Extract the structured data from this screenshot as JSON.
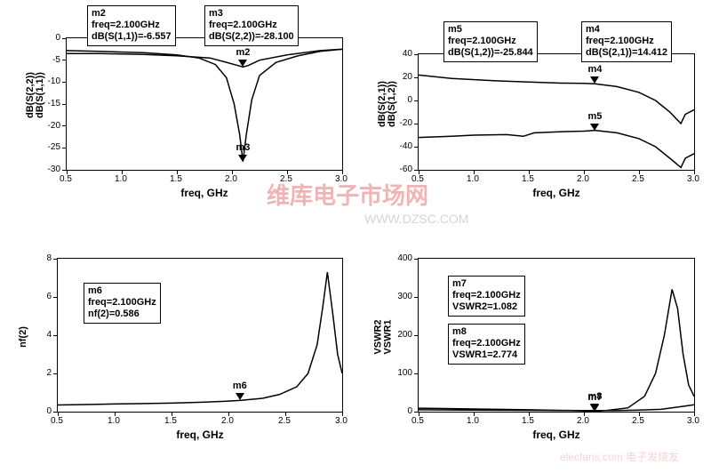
{
  "global": {
    "xlabel": "freq, GHz",
    "axis_color": "#000000",
    "bg_color": "#ffffff",
    "font_family": "Arial"
  },
  "watermarks": {
    "main": "维库电子市场网",
    "url": "WWW.DZSC.COM",
    "right": "elecfans.com 电子发烧友"
  },
  "charts": {
    "tl": {
      "ylabel1": "dB(S(2,2))",
      "ylabel2": "dB(S(1,1))",
      "xlim": [
        0.5,
        3.0
      ],
      "ylim": [
        -30,
        0
      ],
      "xtick_step": 0.5,
      "ytick_step": 5,
      "markers": {
        "m2": {
          "name": "m2",
          "freq_lbl": "freq=2.100GHz",
          "val_lbl": "dB(S(1,1))=-6.557",
          "xf": 2.1,
          "yv": -6.557
        },
        "m3": {
          "name": "m3",
          "freq_lbl": "freq=2.100GHz",
          "val_lbl": "dB(S(2,2))=-28.100",
          "xf": 2.1,
          "yv": -28.1
        }
      },
      "curves": {
        "s11": {
          "color": "#000000",
          "width": 1.5,
          "pts": [
            [
              0.5,
              -3.5
            ],
            [
              0.8,
              -3.5
            ],
            [
              1.2,
              -3.7
            ],
            [
              1.5,
              -4.0
            ],
            [
              1.8,
              -4.5
            ],
            [
              1.95,
              -5.5
            ],
            [
              2.05,
              -6.2
            ],
            [
              2.1,
              -6.557
            ],
            [
              2.15,
              -6.2
            ],
            [
              2.25,
              -5.0
            ],
            [
              2.5,
              -3.8
            ],
            [
              2.8,
              -2.8
            ],
            [
              3.0,
              -2.5
            ]
          ]
        },
        "s22": {
          "color": "#000000",
          "width": 1.5,
          "pts": [
            [
              0.5,
              -2.8
            ],
            [
              0.8,
              -3.0
            ],
            [
              1.2,
              -3.3
            ],
            [
              1.5,
              -3.8
            ],
            [
              1.7,
              -4.5
            ],
            [
              1.85,
              -6.0
            ],
            [
              1.95,
              -9.0
            ],
            [
              2.02,
              -15.0
            ],
            [
              2.07,
              -22.0
            ],
            [
              2.1,
              -28.1
            ],
            [
              2.13,
              -22.0
            ],
            [
              2.18,
              -14.0
            ],
            [
              2.25,
              -8.5
            ],
            [
              2.4,
              -5.5
            ],
            [
              2.6,
              -4.0
            ],
            [
              2.8,
              -3.0
            ],
            [
              3.0,
              -2.5
            ]
          ]
        }
      }
    },
    "tr": {
      "ylabel1": "dB(S(2,1))",
      "ylabel2": "dB(S(1,2))",
      "xlim": [
        0.5,
        3.0
      ],
      "ylim": [
        -60,
        40
      ],
      "xtick_step": 0.5,
      "ytick_step": 20,
      "markers": {
        "m4": {
          "name": "m4",
          "freq_lbl": "freq=2.100GHz",
          "val_lbl": "dB(S(2,1))=14.412",
          "xf": 2.1,
          "yv": 14.412
        },
        "m5": {
          "name": "m5",
          "freq_lbl": "freq=2.100GHz",
          "val_lbl": "dB(S(1,2))=-25.844",
          "xf": 2.1,
          "yv": -25.844
        }
      },
      "curves": {
        "s21": {
          "color": "#000000",
          "width": 1.5,
          "pts": [
            [
              0.5,
              22.0
            ],
            [
              0.8,
              19.0
            ],
            [
              1.2,
              17.0
            ],
            [
              1.5,
              16.0
            ],
            [
              1.8,
              15.0
            ],
            [
              2.0,
              14.8
            ],
            [
              2.1,
              14.412
            ],
            [
              2.3,
              12.0
            ],
            [
              2.5,
              7.0
            ],
            [
              2.65,
              0.0
            ],
            [
              2.78,
              -10.0
            ],
            [
              2.88,
              -20.0
            ],
            [
              2.92,
              -12.0
            ],
            [
              3.0,
              -8.0
            ]
          ]
        },
        "s12": {
          "color": "#000000",
          "width": 1.5,
          "pts": [
            [
              0.5,
              -32.0
            ],
            [
              0.8,
              -31.0
            ],
            [
              1.0,
              -30.0
            ],
            [
              1.3,
              -29.5
            ],
            [
              1.45,
              -31.0
            ],
            [
              1.55,
              -28.0
            ],
            [
              1.8,
              -27.0
            ],
            [
              2.0,
              -26.5
            ],
            [
              2.1,
              -25.844
            ],
            [
              2.3,
              -28.0
            ],
            [
              2.5,
              -33.0
            ],
            [
              2.65,
              -40.0
            ],
            [
              2.78,
              -50.0
            ],
            [
              2.88,
              -58.0
            ],
            [
              2.92,
              -50.0
            ],
            [
              3.0,
              -46.0
            ]
          ]
        }
      }
    },
    "bl": {
      "ylabel1": "nf(2)",
      "ylabel2": "",
      "xlim": [
        0.5,
        3.0
      ],
      "ylim": [
        0,
        8
      ],
      "xtick_step": 0.5,
      "ytick_step": 2,
      "markers": {
        "m6": {
          "name": "m6",
          "freq_lbl": "freq=2.100GHz",
          "val_lbl": "nf(2)=0.586",
          "xf": 2.1,
          "yv": 0.586
        }
      },
      "curves": {
        "nf": {
          "color": "#000000",
          "width": 1.5,
          "pts": [
            [
              0.5,
              0.35
            ],
            [
              0.8,
              0.38
            ],
            [
              1.2,
              0.42
            ],
            [
              1.5,
              0.45
            ],
            [
              1.8,
              0.5
            ],
            [
              2.0,
              0.55
            ],
            [
              2.1,
              0.586
            ],
            [
              2.3,
              0.7
            ],
            [
              2.45,
              0.9
            ],
            [
              2.6,
              1.3
            ],
            [
              2.7,
              2.0
            ],
            [
              2.78,
              3.5
            ],
            [
              2.83,
              5.5
            ],
            [
              2.87,
              7.3
            ],
            [
              2.92,
              5.0
            ],
            [
              2.96,
              3.0
            ],
            [
              3.0,
              2.0
            ]
          ]
        }
      }
    },
    "br": {
      "ylabel1": "VSWR2",
      "ylabel2": "VSWR1",
      "xlim": [
        0.5,
        3.0
      ],
      "ylim": [
        0,
        400
      ],
      "xtick_step": 0.5,
      "ytick_step": 100,
      "markers": {
        "m7": {
          "name": "m7",
          "freq_lbl": "freq=2.100GHz",
          "val_lbl": "VSWR2=1.082",
          "xf": 2.1,
          "yv": 1.082
        },
        "m8": {
          "name": "m8",
          "freq_lbl": "freq=2.100GHz",
          "val_lbl": "VSWR1=2.774",
          "xf": 2.1,
          "yv": 2.774
        }
      },
      "curves": {
        "vswr2": {
          "color": "#000000",
          "width": 1.5,
          "pts": [
            [
              0.5,
              9.0
            ],
            [
              1.0,
              7.0
            ],
            [
              1.5,
              5.0
            ],
            [
              2.0,
              2.0
            ],
            [
              2.1,
              1.082
            ],
            [
              2.2,
              3.0
            ],
            [
              2.4,
              10.0
            ],
            [
              2.55,
              40.0
            ],
            [
              2.65,
              100.0
            ],
            [
              2.73,
              200.0
            ],
            [
              2.8,
              320.0
            ],
            [
              2.85,
              270.0
            ],
            [
              2.9,
              150.0
            ],
            [
              2.95,
              70.0
            ],
            [
              3.0,
              40.0
            ]
          ]
        },
        "vswr1": {
          "color": "#000000",
          "width": 1.5,
          "pts": [
            [
              0.5,
              5.0
            ],
            [
              1.0,
              4.0
            ],
            [
              1.5,
              3.5
            ],
            [
              2.0,
              3.0
            ],
            [
              2.1,
              2.774
            ],
            [
              2.3,
              3.0
            ],
            [
              2.5,
              4.0
            ],
            [
              2.7,
              6.0
            ],
            [
              2.85,
              12.0
            ],
            [
              3.0,
              18.0
            ]
          ]
        }
      }
    }
  }
}
